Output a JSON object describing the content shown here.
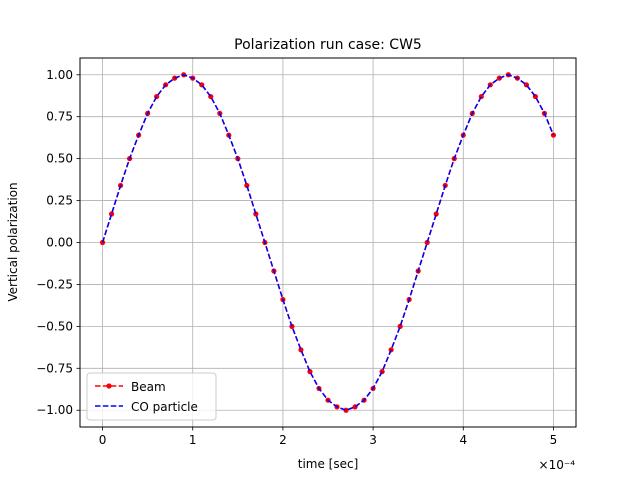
{
  "chart_data": {
    "type": "line",
    "title": "Polarization run case: CW5",
    "xlabel": "time [sec]",
    "ylabel": "Vertical polarization",
    "x_offset_label": "×10⁻⁴",
    "xlim": [
      -0.25,
      5.25
    ],
    "ylim": [
      -1.1,
      1.1
    ],
    "xticks": [
      0,
      1,
      2,
      3,
      4,
      5
    ],
    "xtick_labels": [
      "0",
      "1",
      "2",
      "3",
      "4",
      "5"
    ],
    "yticks": [
      -1.0,
      -0.75,
      -0.5,
      -0.25,
      0.0,
      0.25,
      0.5,
      0.75,
      1.0
    ],
    "ytick_labels": [
      "−1.00",
      "−0.75",
      "−0.50",
      "−0.25",
      "0.00",
      "0.25",
      "0.50",
      "0.75",
      "1.00"
    ],
    "grid": true,
    "legend_position": "lower-left",
    "series": [
      {
        "name": "Beam",
        "color": "#ff0000",
        "style": "dashed-with-dots",
        "x": [
          0.0,
          0.1,
          0.2,
          0.3,
          0.4,
          0.5,
          0.6,
          0.7,
          0.8,
          0.9,
          1.0,
          1.1,
          1.2,
          1.3,
          1.4,
          1.5,
          1.6,
          1.7,
          1.8,
          1.9,
          2.0,
          2.1,
          2.2,
          2.3,
          2.4,
          2.5,
          2.6,
          2.7,
          2.8,
          2.9,
          3.0,
          3.1,
          3.2,
          3.3,
          3.4,
          3.5,
          3.6,
          3.7,
          3.8,
          3.9,
          4.0,
          4.1,
          4.2,
          4.3,
          4.4,
          4.5,
          4.6,
          4.7,
          4.8,
          4.9,
          5.0
        ],
        "y": [
          0.0,
          0.17,
          0.34,
          0.5,
          0.64,
          0.77,
          0.87,
          0.94,
          0.98,
          1.0,
          0.98,
          0.94,
          0.87,
          0.77,
          0.64,
          0.5,
          0.34,
          0.17,
          0.0,
          -0.17,
          -0.34,
          -0.5,
          -0.64,
          -0.77,
          -0.87,
          -0.94,
          -0.98,
          -1.0,
          -0.98,
          -0.94,
          -0.87,
          -0.77,
          -0.64,
          -0.5,
          -0.34,
          -0.17,
          0.0,
          0.17,
          0.34,
          0.5,
          0.64,
          0.77,
          0.87,
          0.94,
          0.98,
          1.0,
          0.98,
          0.94,
          0.87,
          0.77,
          0.64
        ]
      },
      {
        "name": "CO particle",
        "color": "#0000ff",
        "style": "dashed",
        "x": [
          0.0,
          0.1,
          0.2,
          0.3,
          0.4,
          0.5,
          0.6,
          0.7,
          0.8,
          0.9,
          1.0,
          1.1,
          1.2,
          1.3,
          1.4,
          1.5,
          1.6,
          1.7,
          1.8,
          1.9,
          2.0,
          2.1,
          2.2,
          2.3,
          2.4,
          2.5,
          2.6,
          2.7,
          2.8,
          2.9,
          3.0,
          3.1,
          3.2,
          3.3,
          3.4,
          3.5,
          3.6,
          3.7,
          3.8,
          3.9,
          4.0,
          4.1,
          4.2,
          4.3,
          4.4,
          4.5,
          4.6,
          4.7,
          4.8,
          4.9,
          5.0
        ],
        "y": [
          0.0,
          0.17,
          0.34,
          0.5,
          0.64,
          0.77,
          0.87,
          0.94,
          0.98,
          1.0,
          0.98,
          0.94,
          0.87,
          0.77,
          0.64,
          0.5,
          0.34,
          0.17,
          0.0,
          -0.17,
          -0.34,
          -0.5,
          -0.64,
          -0.77,
          -0.87,
          -0.94,
          -0.98,
          -1.0,
          -0.98,
          -0.94,
          -0.87,
          -0.77,
          -0.64,
          -0.5,
          -0.34,
          -0.17,
          0.0,
          0.17,
          0.34,
          0.5,
          0.64,
          0.77,
          0.87,
          0.94,
          0.98,
          1.0,
          0.98,
          0.94,
          0.87,
          0.77,
          0.64
        ]
      }
    ]
  }
}
